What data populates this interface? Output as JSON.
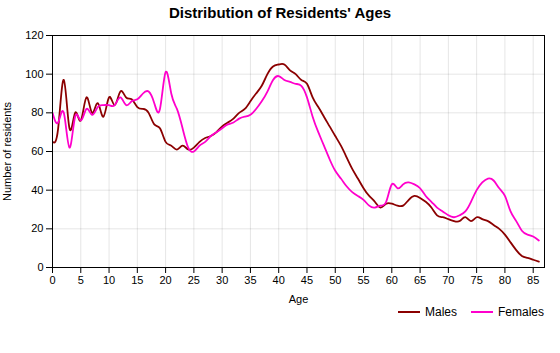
{
  "chart_data": {
    "type": "line",
    "title": "Distribution of Residents' Ages",
    "xlabel": "Age",
    "ylabel": "Number of residents",
    "xlim": [
      0,
      87
    ],
    "ylim": [
      0,
      120
    ],
    "xticks": [
      0,
      5,
      10,
      15,
      20,
      25,
      30,
      35,
      40,
      45,
      50,
      55,
      60,
      65,
      70,
      75,
      80,
      85
    ],
    "yticks": [
      0,
      20,
      40,
      60,
      80,
      100,
      120
    ],
    "grid": true,
    "legend": "lower right",
    "x": [
      0,
      1,
      2,
      3,
      4,
      5,
      6,
      7,
      8,
      9,
      10,
      11,
      12,
      13,
      14,
      15,
      16,
      17,
      18,
      19,
      20,
      21,
      22,
      23,
      24,
      25,
      26,
      27,
      28,
      29,
      30,
      31,
      32,
      33,
      34,
      35,
      36,
      37,
      38,
      39,
      40,
      41,
      42,
      43,
      44,
      45,
      46,
      47,
      48,
      49,
      50,
      51,
      52,
      53,
      54,
      55,
      56,
      57,
      58,
      59,
      60,
      61,
      62,
      63,
      64,
      65,
      66,
      67,
      68,
      69,
      70,
      71,
      72,
      73,
      74,
      75,
      76,
      77,
      78,
      79,
      80,
      81,
      82,
      83,
      84,
      85,
      86
    ],
    "series": [
      {
        "name": "Males",
        "color": "#8B0000",
        "values": [
          65,
          72,
          97,
          72,
          80,
          76,
          88,
          80,
          85,
          78,
          88,
          84,
          91,
          88,
          87,
          83,
          82,
          80,
          74,
          72,
          65,
          63,
          61,
          63,
          61,
          62,
          65,
          67,
          68,
          70,
          73,
          75,
          77,
          80,
          82,
          86,
          90,
          94,
          100,
          104,
          105,
          105,
          102,
          100,
          97,
          95,
          88,
          83,
          78,
          73,
          68,
          63,
          57,
          51,
          46,
          41,
          37,
          34,
          31,
          33,
          33,
          32,
          32,
          35,
          37,
          36,
          34,
          31,
          27,
          26,
          25,
          24,
          24,
          26,
          24,
          26,
          25,
          24,
          22,
          20,
          17,
          13,
          9,
          6,
          5,
          4,
          3
        ]
      },
      {
        "name": "Females",
        "color": "#FF00CC",
        "values": [
          80,
          75,
          80,
          62,
          78,
          76,
          82,
          79,
          83,
          84,
          84,
          84,
          88,
          84,
          86,
          87,
          90,
          91,
          85,
          82,
          101,
          90,
          82,
          72,
          62,
          60,
          63,
          65,
          68,
          70,
          72,
          74,
          75,
          77,
          78,
          79,
          82,
          86,
          91,
          97,
          99,
          97,
          96,
          95,
          94,
          88,
          78,
          70,
          63,
          56,
          50,
          46,
          42,
          39,
          37,
          35,
          32,
          31,
          32,
          34,
          43,
          41,
          43,
          44,
          43,
          41,
          37,
          34,
          31,
          29,
          27,
          26,
          27,
          29,
          34,
          40,
          44,
          46,
          45,
          41,
          37,
          29,
          24,
          19,
          17,
          16,
          14
        ]
      }
    ]
  }
}
